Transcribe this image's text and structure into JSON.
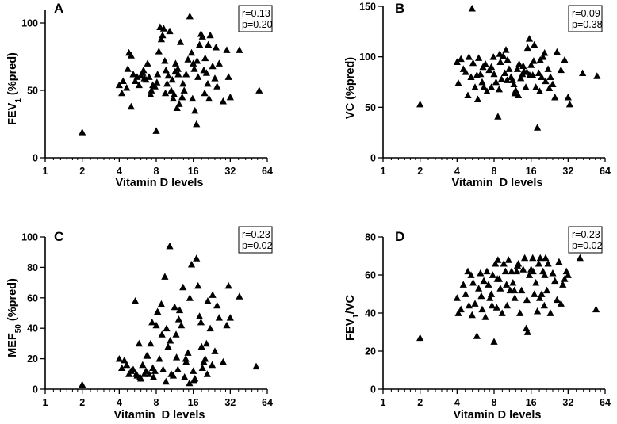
{
  "figure": {
    "panel_count": 4
  },
  "chart_data": [
    {
      "type": "scatter",
      "label": "A",
      "xlabel": "Vitamin D levels",
      "ylabel": "FEV1 (%pred)",
      "ylabel_main": "FEV",
      "ylabel_sub": "1",
      "ylabel_rest": " (%pred)",
      "xscale": "log2",
      "xlim": [
        1,
        64
      ],
      "ylim": [
        0,
        110
      ],
      "xticks": [
        1,
        2,
        4,
        8,
        16,
        32,
        64
      ],
      "xtick_labels": [
        "1",
        "2",
        "4",
        "8",
        "16",
        "32",
        "64"
      ],
      "yticks": [
        0,
        50,
        100
      ],
      "ytick_labels": [
        "0",
        "50",
        "100"
      ],
      "stats": {
        "r": "r=0.13",
        "p": "p=0.20"
      },
      "x": [
        2.0,
        4.0,
        4.2,
        4.3,
        4.6,
        4.7,
        4.8,
        5.0,
        5.2,
        5.4,
        5.6,
        5.8,
        6.0,
        6.2,
        6.4,
        6.6,
        6.8,
        7.0,
        7.2,
        7.5,
        7.8,
        8.0,
        8.2,
        8.4,
        8.6,
        8.8,
        9.0,
        9.2,
        9.4,
        9.6,
        9.8,
        10.0,
        10.3,
        10.6,
        11.0,
        11.2,
        11.5,
        11.8,
        12.0,
        12.3,
        12.6,
        13.0,
        13.5,
        14.0,
        14.5,
        15.0,
        15.5,
        16.0,
        16.5,
        17.0,
        17.5,
        18.0,
        18.5,
        19.0,
        19.5,
        20.0,
        20.5,
        21.0,
        21.5,
        22.0,
        23.0,
        24.0,
        25.0,
        26.0,
        28.0,
        30.0,
        31.0,
        32.0,
        38.0,
        55.0,
        5.0,
        9.5,
        13.2,
        17.2,
        6.3,
        10.8,
        15.8,
        21.2,
        8.1,
        12.1,
        19.8,
        7.3,
        11.4,
        16.3,
        24.5
      ],
      "y": [
        19,
        54,
        48,
        57,
        52,
        66,
        78,
        76,
        62,
        57,
        60,
        54,
        61,
        63,
        59,
        58,
        70,
        60,
        47,
        54,
        53,
        20,
        62,
        79,
        97,
        88,
        91,
        96,
        72,
        65,
        55,
        61,
        94,
        50,
        44,
        47,
        70,
        37,
        66,
        40,
        86,
        45,
        50,
        62,
        73,
        105,
        78,
        70,
        35,
        25,
        60,
        84,
        92,
        90,
        65,
        74,
        63,
        55,
        44,
        91,
        68,
        59,
        53,
        70,
        42,
        80,
        60,
        45,
        80,
        50,
        38,
        48,
        55,
        72,
        65,
        58,
        44,
        84,
        56,
        62,
        48,
        50,
        64,
        66,
        82
      ]
    },
    {
      "type": "scatter",
      "label": "B",
      "xlabel": "Vitamin  D levels",
      "ylabel": "VC (%pred)",
      "ylabel_main": "VC (%pred)",
      "ylabel_sub": "",
      "ylabel_rest": "",
      "xscale": "log2",
      "xlim": [
        1,
        64
      ],
      "ylim": [
        0,
        150
      ],
      "xticks": [
        1,
        2,
        4,
        8,
        16,
        32,
        64
      ],
      "xtick_labels": [
        "1",
        "2",
        "4",
        "8",
        "16",
        "32",
        "64"
      ],
      "yticks": [
        0,
        50,
        100,
        150
      ],
      "ytick_labels": [
        "0",
        "50",
        "100",
        "150"
      ],
      "stats": {
        "r": "r=0.09",
        "p": "p=0.38"
      },
      "x": [
        2.0,
        4.0,
        4.1,
        4.3,
        4.5,
        4.7,
        4.9,
        5.0,
        5.2,
        5.4,
        5.6,
        5.8,
        6.0,
        6.2,
        6.4,
        6.6,
        6.8,
        7.0,
        7.3,
        7.6,
        7.9,
        8.0,
        8.3,
        8.6,
        8.9,
        9.2,
        9.5,
        9.8,
        10.0,
        10.3,
        10.6,
        11.0,
        11.3,
        11.6,
        12.0,
        12.4,
        12.8,
        13.2,
        13.6,
        14.0,
        14.5,
        15.0,
        15.5,
        16.0,
        16.5,
        17.0,
        17.5,
        18.0,
        18.5,
        19.0,
        19.5,
        20.0,
        21.0,
        22.0,
        23.0,
        24.0,
        25.0,
        26.0,
        28.0,
        30.0,
        32.0,
        33.0,
        42.0,
        55.0,
        5.3,
        8.8,
        12.6,
        16.8,
        6.5,
        10.2,
        14.8,
        20.6,
        7.6,
        11.8,
        18.8,
        9.0,
        13.8,
        22.5,
        5.9,
        15.6
      ],
      "y": [
        53,
        95,
        74,
        98,
        88,
        85,
        62,
        100,
        80,
        94,
        70,
        82,
        99,
        83,
        75,
        70,
        93,
        66,
        87,
        90,
        100,
        83,
        75,
        41,
        103,
        78,
        101,
        84,
        107,
        97,
        88,
        80,
        77,
        73,
        67,
        88,
        93,
        79,
        83,
        86,
        70,
        109,
        118,
        92,
        82,
        112,
        70,
        30,
        84,
        97,
        80,
        100,
        76,
        88,
        80,
        73,
        60,
        105,
        87,
        97,
        60,
        53,
        84,
        81,
        148,
        68,
        62,
        96,
        90,
        77,
        85,
        104,
        70,
        64,
        66,
        95,
        91,
        69,
        58,
        82
      ]
    },
    {
      "type": "scatter",
      "label": "C",
      "xlabel": "Vitamin  D levels",
      "ylabel": "MEF50 (%pred)",
      "ylabel_main": "MEF",
      "ylabel_sub": "50",
      "ylabel_rest": " (%pred)",
      "xscale": "log2",
      "xlim": [
        1,
        64
      ],
      "ylim": [
        0,
        100
      ],
      "xticks": [
        1,
        2,
        4,
        8,
        16,
        32,
        64
      ],
      "xtick_labels": [
        "1",
        "2",
        "4",
        "8",
        "16",
        "32",
        "64"
      ],
      "yticks": [
        0,
        20,
        40,
        60,
        80,
        100
      ],
      "ytick_labels": [
        "0",
        "20",
        "40",
        "60",
        "80",
        "100"
      ],
      "stats": {
        "r": "r=0.23",
        "p": "p=0.02"
      },
      "x": [
        2.0,
        4.0,
        4.2,
        4.4,
        4.6,
        4.8,
        5.0,
        5.2,
        5.4,
        5.6,
        5.8,
        6.0,
        6.2,
        6.4,
        6.6,
        6.8,
        7.0,
        7.2,
        7.4,
        7.6,
        7.8,
        8.0,
        8.2,
        8.5,
        8.8,
        9.1,
        9.4,
        9.7,
        10.0,
        10.3,
        10.6,
        11.0,
        11.3,
        11.6,
        12.0,
        12.4,
        12.8,
        13.2,
        13.6,
        14.0,
        14.5,
        15.0,
        15.5,
        16.0,
        16.5,
        17.0,
        17.5,
        18.0,
        18.5,
        19.0,
        19.5,
        20.0,
        20.5,
        21.0,
        22.0,
        23.0,
        24.0,
        25.0,
        26.0,
        28.0,
        30.0,
        31.0,
        32.0,
        38.0,
        52.0,
        5.5,
        8.9,
        12.2,
        16.2,
        6.7,
        10.4,
        14.9,
        20.8,
        7.5,
        11.7,
        18.7,
        9.6,
        13.9,
        22.8,
        5.9
      ],
      "y": [
        3,
        20,
        14,
        19,
        16,
        10,
        12,
        13,
        58,
        9,
        30,
        7,
        16,
        10,
        12,
        22,
        10,
        30,
        44,
        8,
        12,
        42,
        51,
        20,
        56,
        13,
        74,
        40,
        28,
        94,
        10,
        9,
        54,
        36,
        13,
        52,
        42,
        67,
        8,
        18,
        24,
        60,
        82,
        12,
        7,
        86,
        68,
        48,
        44,
        14,
        18,
        20,
        30,
        58,
        40,
        62,
        25,
        55,
        47,
        18,
        42,
        68,
        47,
        61,
        15,
        10,
        36,
        46,
        6,
        22,
        32,
        4,
        10,
        14,
        21,
        28,
        5,
        20,
        16,
        8
      ]
    },
    {
      "type": "scatter",
      "label": "D",
      "xlabel": "Vitamin D levels",
      "ylabel": "FEV1/VC",
      "ylabel_main": "FEV",
      "ylabel_sub": "1",
      "ylabel_rest": "/VC",
      "xscale": "log2",
      "xlim": [
        1,
        64
      ],
      "ylim": [
        0,
        80
      ],
      "xticks": [
        1,
        2,
        4,
        8,
        16,
        32,
        64
      ],
      "xtick_labels": [
        "1",
        "2",
        "4",
        "8",
        "16",
        "32",
        "64"
      ],
      "yticks": [
        0,
        20,
        40,
        60,
        80
      ],
      "ytick_labels": [
        "0",
        "20",
        "40",
        "60",
        "80"
      ],
      "stats": {
        "r": "r=0.23",
        "p": "p=0.02"
      },
      "x": [
        2.0,
        4.0,
        4.1,
        4.3,
        4.5,
        4.7,
        4.9,
        5.0,
        5.2,
        5.4,
        5.6,
        5.8,
        6.0,
        6.2,
        6.4,
        6.6,
        6.8,
        7.0,
        7.2,
        7.4,
        7.6,
        7.8,
        8.0,
        8.2,
        8.4,
        8.6,
        8.8,
        9.0,
        9.3,
        9.6,
        9.9,
        10.2,
        10.5,
        10.8,
        11.1,
        11.4,
        11.8,
        12.2,
        12.6,
        13.0,
        13.4,
        13.8,
        14.2,
        14.6,
        15.0,
        15.5,
        16.0,
        16.5,
        17.0,
        17.5,
        18.0,
        18.5,
        19.0,
        19.5,
        20.0,
        20.5,
        21.0,
        21.5,
        22.0,
        23.0,
        24.0,
        25.0,
        26.0,
        27.0,
        28.0,
        29.0,
        30.0,
        31.0,
        32.0,
        40.0,
        54.0,
        5.3,
        8.5,
        12.4,
        16.6,
        6.3,
        10.1,
        14.8,
        20.7,
        7.7,
        11.7,
        18.8
      ],
      "y": [
        27,
        48,
        40,
        42,
        55,
        50,
        62,
        44,
        60,
        56,
        45,
        28,
        53,
        61,
        42,
        57,
        38,
        62,
        55,
        48,
        50,
        60,
        25,
        66,
        43,
        68,
        58,
        53,
        40,
        66,
        62,
        44,
        68,
        52,
        62,
        56,
        48,
        62,
        66,
        40,
        52,
        63,
        69,
        32,
        30,
        60,
        63,
        69,
        50,
        56,
        41,
        66,
        69,
        50,
        62,
        44,
        69,
        52,
        66,
        40,
        61,
        57,
        47,
        67,
        45,
        55,
        58,
        62,
        60,
        69,
        42,
        39,
        58,
        65,
        62,
        49,
        55,
        47,
        60,
        44,
        52,
        48
      ]
    }
  ]
}
